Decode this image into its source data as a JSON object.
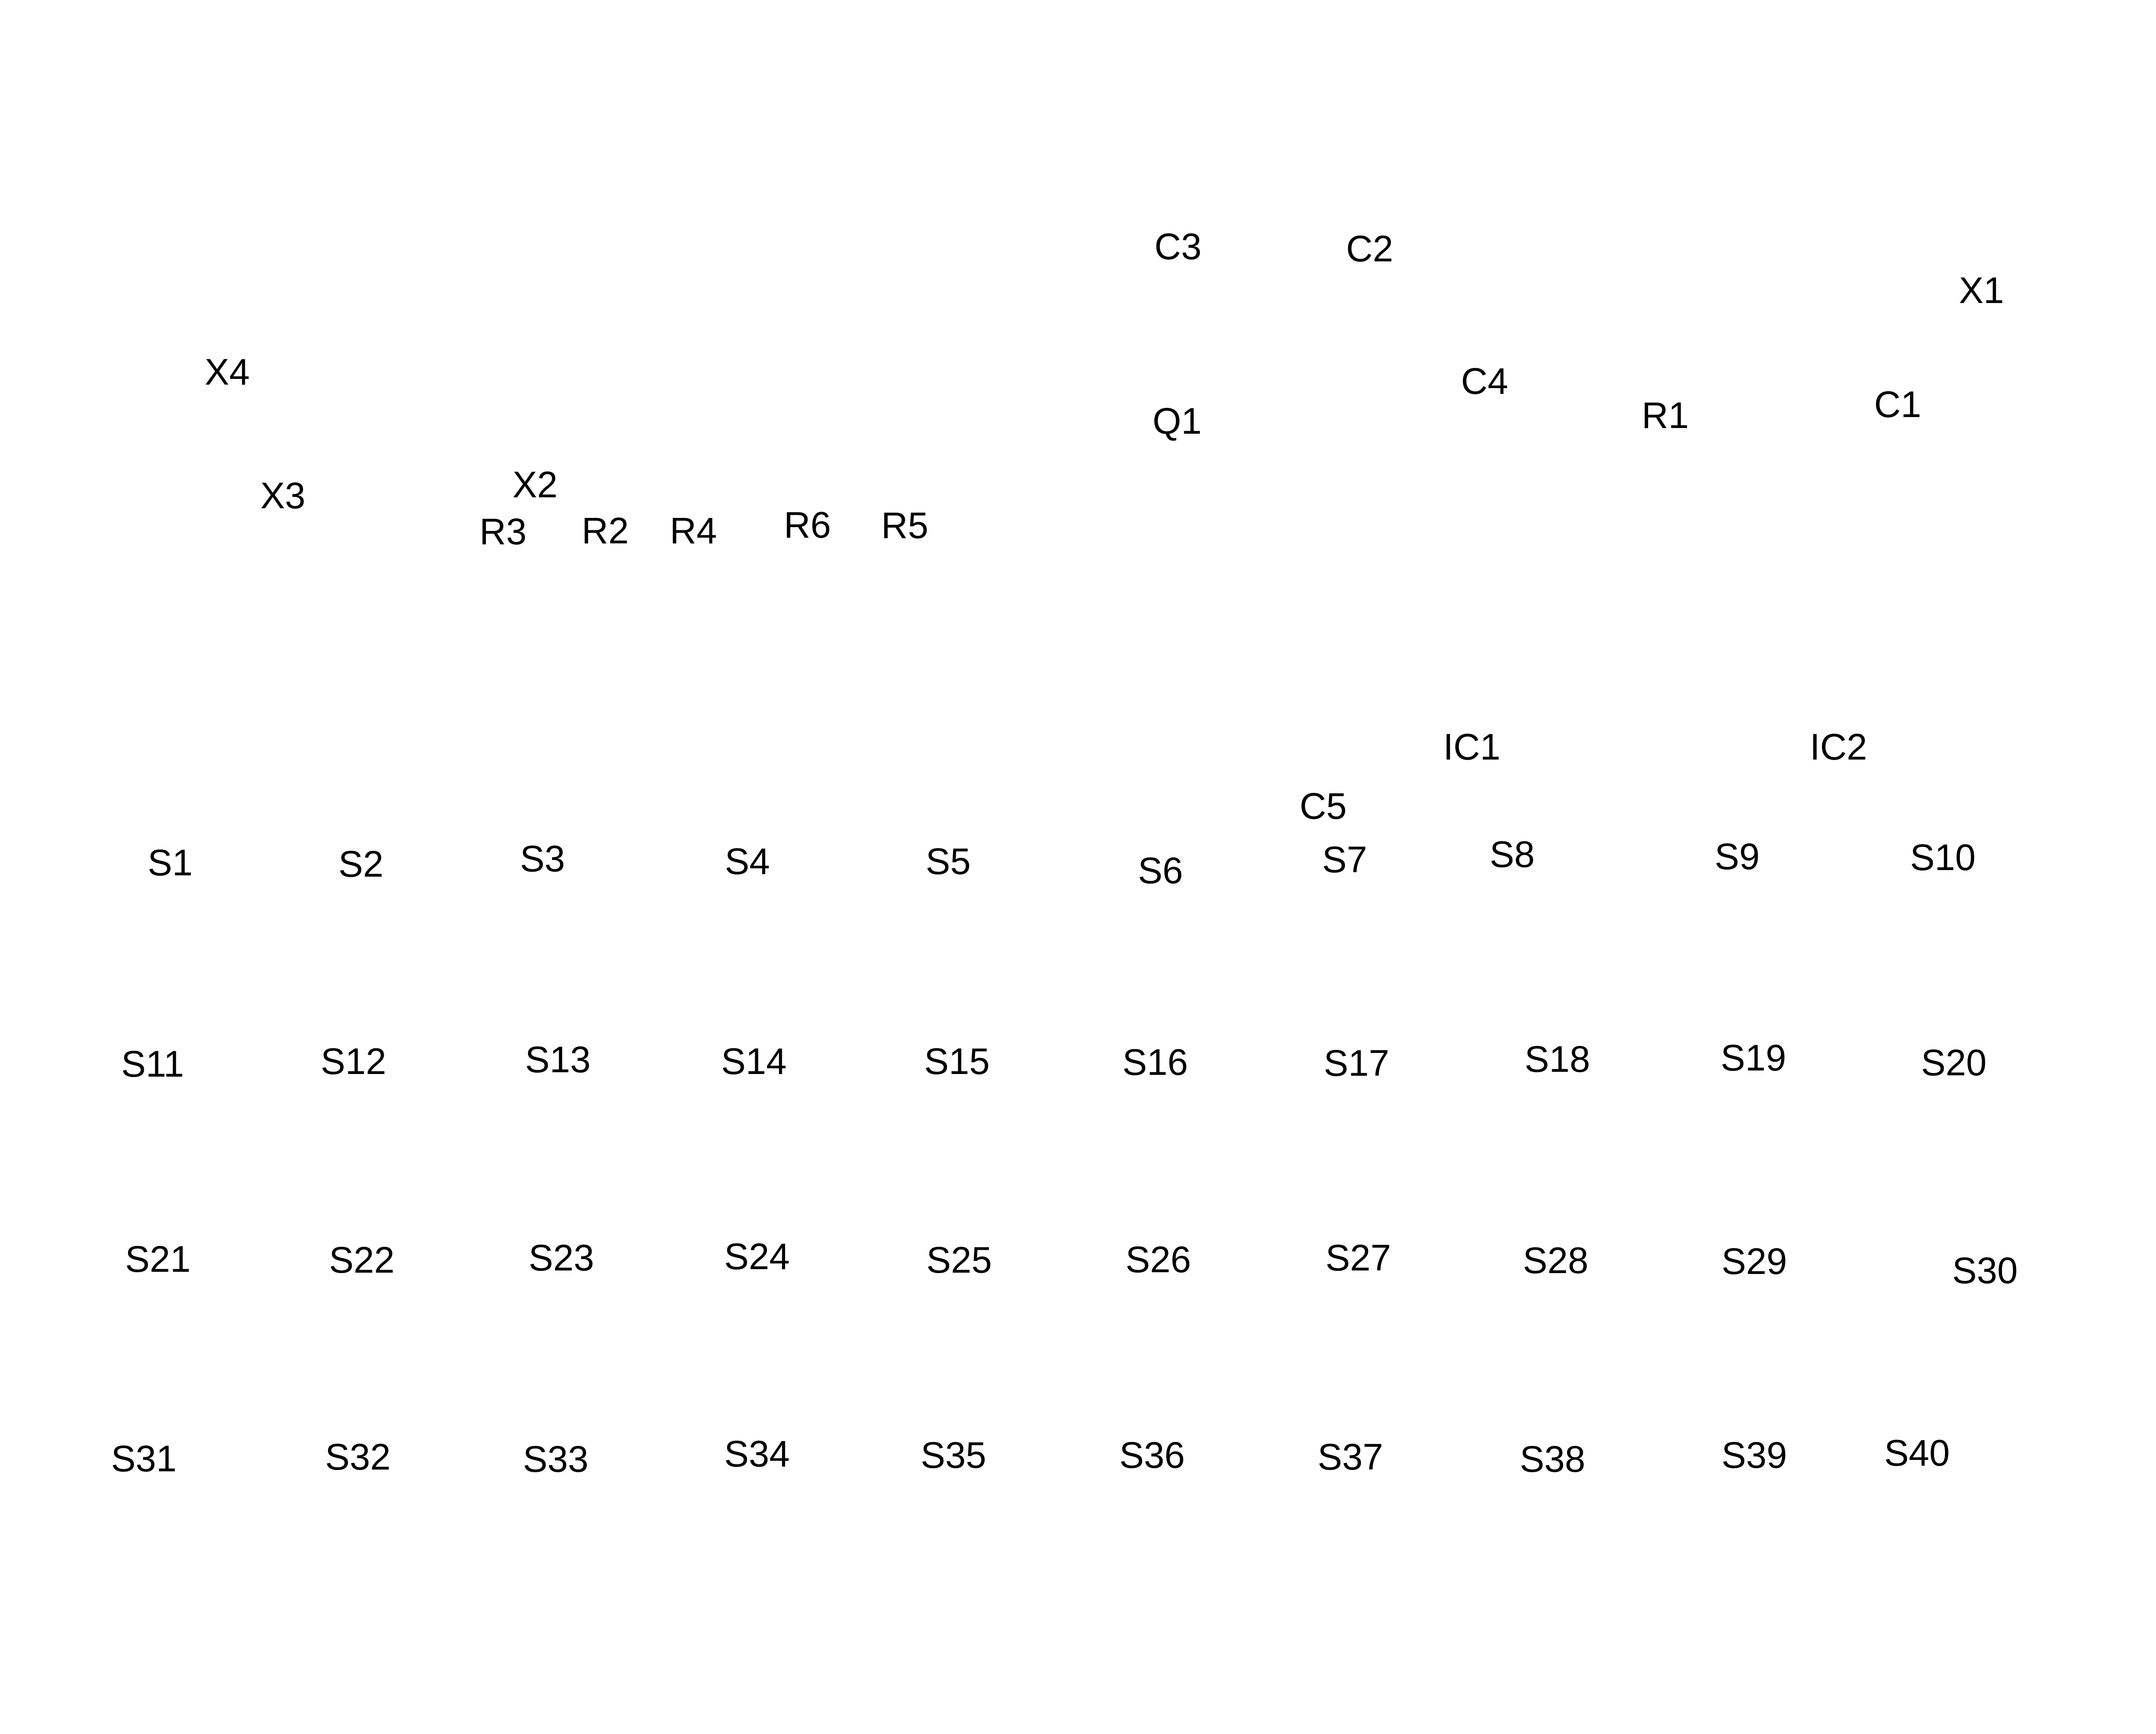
{
  "components": {
    "X1": "X1",
    "X2": "X2",
    "X3": "X3",
    "X4": "X4",
    "C1": "C1",
    "C2": "C2",
    "C3": "C3",
    "C4": "C4",
    "C5": "C5",
    "Q1": "Q1",
    "R1": "R1",
    "R2": "R2",
    "R3": "R3",
    "R4": "R4",
    "R5": "R5",
    "R6": "R6",
    "IC1": "IC1",
    "IC2": "IC2"
  },
  "switches": [
    "S1",
    "S2",
    "S3",
    "S4",
    "S5",
    "S6",
    "S7",
    "S8",
    "S9",
    "S10",
    "S11",
    "S12",
    "S13",
    "S14",
    "S15",
    "S16",
    "S17",
    "S18",
    "S19",
    "S20",
    "S21",
    "S22",
    "S23",
    "S24",
    "S25",
    "S26",
    "S27",
    "S28",
    "S29",
    "S30",
    "S31",
    "S32",
    "S33",
    "S34",
    "S35",
    "S36",
    "S37",
    "S38",
    "S39",
    "S40"
  ]
}
